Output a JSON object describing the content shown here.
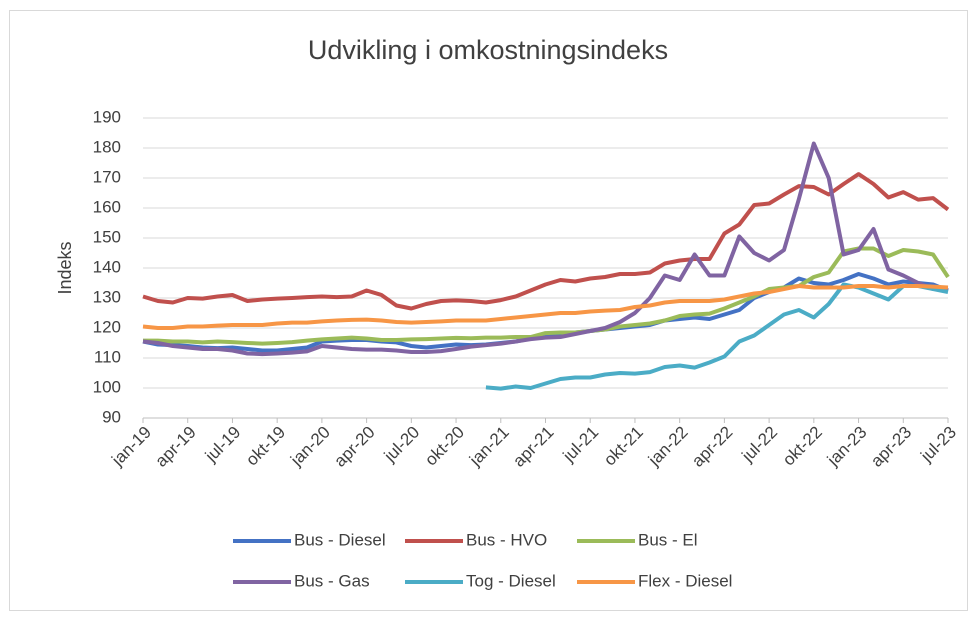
{
  "chart_data": {
    "type": "line",
    "title": "Udvikling i omkostningsindeks",
    "y_label": "Indeks",
    "categories": [
      "jan-19",
      null,
      null,
      "apr-19",
      null,
      null,
      "jul-19",
      null,
      null,
      "okt-19",
      null,
      null,
      "jan-20",
      null,
      null,
      "apr-20",
      null,
      null,
      "jul-20",
      null,
      null,
      "okt-20",
      null,
      null,
      "jan-21",
      null,
      null,
      "apr-21",
      null,
      null,
      "jul-21",
      null,
      null,
      "okt-21",
      null,
      null,
      "jan-22",
      null,
      null,
      "apr-22",
      null,
      null,
      "jul-22",
      null,
      null,
      "okt-22",
      null,
      null,
      "jan-23",
      null,
      null,
      "apr-23",
      null,
      null,
      "jul-23"
    ],
    "ylim": [
      90,
      190
    ],
    "yticks": [
      90,
      100,
      110,
      120,
      130,
      140,
      150,
      160,
      170,
      180,
      190
    ],
    "grid": true,
    "legend": "bottom",
    "series": [
      {
        "name": "Bus - Diesel",
        "color": "#4472c4",
        "values": [
          115.5,
          114.5,
          114.3,
          114,
          113.5,
          113.3,
          113.5,
          113,
          112.5,
          112.5,
          113,
          113.5,
          115.5,
          115.8,
          116,
          116,
          115.5,
          115.2,
          114,
          113.5,
          114,
          114.5,
          114.3,
          114.5,
          115,
          115.5,
          116.5,
          117,
          117.5,
          118.5,
          119,
          119.5,
          120,
          120.5,
          121,
          122.5,
          123,
          123.5,
          123,
          124.5,
          126,
          130,
          132,
          133.5,
          136.5,
          135,
          134.5,
          136,
          138,
          136.5,
          134.5,
          135.5,
          135,
          134.5,
          132.5
        ]
      },
      {
        "name": "Bus - HVO",
        "color": "#c0504d",
        "values": [
          130.5,
          129,
          128.5,
          130,
          129.8,
          130.5,
          131,
          129,
          129.5,
          129.8,
          130,
          130.3,
          130.5,
          130.3,
          130.5,
          132.5,
          131,
          127.5,
          126.5,
          128,
          129,
          129.2,
          129,
          128.5,
          129.3,
          130.5,
          132.5,
          134.5,
          136,
          135.5,
          136.5,
          137,
          138,
          138,
          138.5,
          141.5,
          142.5,
          143,
          143,
          151.5,
          154.5,
          161,
          161.5,
          164.5,
          167.3,
          167,
          164.5,
          168,
          171.3,
          168,
          163.5,
          165.3,
          162.8,
          163.3,
          159.5
        ]
      },
      {
        "name": "Bus - El",
        "color": "#9bbb59",
        "values": [
          115.8,
          115.8,
          115.5,
          115.5,
          115.2,
          115.5,
          115.3,
          115,
          114.8,
          115,
          115.3,
          115.8,
          116.2,
          116.5,
          116.8,
          116.5,
          116,
          116,
          116.2,
          116.3,
          116.5,
          116.7,
          116.6,
          116.8,
          116.8,
          117,
          117,
          118.3,
          118.5,
          118.5,
          119,
          119.5,
          120.5,
          121,
          121.5,
          122.5,
          124,
          124.5,
          124.8,
          126.5,
          128.5,
          130.5,
          133,
          133.5,
          134,
          137,
          138.5,
          145.5,
          146.5,
          146.5,
          144,
          146,
          145.5,
          144.5,
          137
        ]
      },
      {
        "name": "Bus - Gas",
        "color": "#8064a2",
        "values": [
          115.5,
          115,
          114,
          113.5,
          113,
          113,
          112.5,
          111.5,
          111.3,
          111.5,
          111.8,
          112.2,
          114,
          113.5,
          113,
          112.8,
          112.8,
          112.5,
          112,
          112,
          112.3,
          113,
          113.8,
          114.3,
          114.8,
          115.5,
          116.3,
          116.8,
          117,
          118,
          119,
          120,
          122,
          125,
          130,
          137.5,
          136,
          144.5,
          137.5,
          137.5,
          150.5,
          145,
          142.5,
          146,
          163,
          181.5,
          170,
          144.5,
          146,
          153,
          139.5,
          137.5,
          135,
          133,
          133.5
        ]
      },
      {
        "name": "Tog - Diesel",
        "color": "#4bacc6",
        "values": [
          null,
          null,
          null,
          null,
          null,
          null,
          null,
          null,
          null,
          null,
          null,
          null,
          null,
          null,
          null,
          null,
          null,
          null,
          null,
          null,
          null,
          null,
          null,
          100.2,
          99.8,
          100.5,
          100,
          101.5,
          103,
          103.5,
          103.5,
          104.5,
          105,
          104.8,
          105.3,
          107,
          107.5,
          106.8,
          108.5,
          110.5,
          115.5,
          117.5,
          121,
          124.5,
          126,
          123.5,
          128,
          134.5,
          133.5,
          131.5,
          129.5,
          134,
          134,
          133,
          132
        ]
      },
      {
        "name": "Flex - Diesel",
        "color": "#f79646",
        "values": [
          120.5,
          120,
          120,
          120.5,
          120.5,
          120.8,
          121,
          121,
          121,
          121.5,
          121.8,
          121.8,
          122.2,
          122.5,
          122.7,
          122.8,
          122.5,
          122,
          121.8,
          122,
          122.2,
          122.5,
          122.5,
          122.5,
          123,
          123.5,
          124,
          124.5,
          125,
          125,
          125.5,
          125.8,
          126,
          127,
          127.5,
          128.5,
          129,
          129,
          129,
          129.5,
          130.5,
          131.5,
          132,
          133,
          134,
          133.5,
          133.5,
          133.5,
          134,
          134,
          133.5,
          134,
          134,
          133.8,
          133.5
        ]
      }
    ]
  }
}
